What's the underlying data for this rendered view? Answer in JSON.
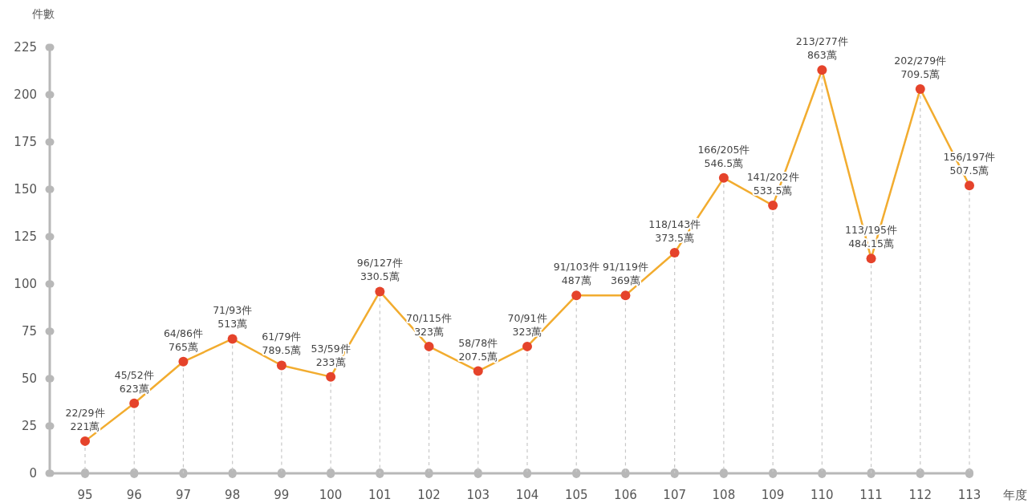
{
  "chart_data": {
    "type": "line",
    "ylabel": "件數",
    "xlabel": "年度",
    "categories": [
      "95",
      "96",
      "97",
      "98",
      "99",
      "100",
      "101",
      "102",
      "103",
      "104",
      "105",
      "106",
      "107",
      "108",
      "109",
      "110",
      "111",
      "112",
      "113"
    ],
    "series": [
      {
        "color": "#f2ac2f",
        "colors": [
          "#e5432b",
          "#e5432b",
          "#e5432b",
          "#e5432b",
          "#e5432b",
          "#e5432b",
          "#e5432b",
          "#e5432b",
          "#e5432b",
          "#e5432b",
          "#e5432b",
          "#e5432b",
          "#e5432b",
          "#e5432b",
          "#e5432b",
          "#e5432b",
          "#e5432b",
          "#e5432b",
          "#e5432b"
        ],
        "values": [
          17,
          37,
          59,
          71,
          57,
          51,
          96,
          67,
          54,
          67,
          94,
          94,
          116.5,
          156,
          141.5,
          213,
          113.5,
          203,
          152
        ],
        "value_labels": [
          "22/29件\n221萬",
          "45/52件\n623萬",
          "64/86件\n765萬",
          "71/93件\n513萬",
          "61/79件\n789.5萬",
          "53/59件\n233萬",
          "96/127件\n330.5萬",
          "70/115件\n323萬",
          "58/78件\n207.5萬",
          "70/91件\n323萬",
          "91/103件\n487萬",
          "91/119件\n369萬",
          "118/143件\n373.5萬",
          "166/205件\n546.5萬",
          "141/202件\n533.5萬",
          "213/277件\n863萬",
          "113/195件\n484.15萬",
          "202/279件\n709.5萬",
          "156/197件\n507.5萬"
        ]
      }
    ],
    "ylim": [
      0,
      225
    ],
    "yticks": [
      0,
      25,
      50,
      75,
      100,
      125,
      150,
      175,
      200,
      225
    ],
    "grid": "x",
    "marker": "circle",
    "line_style": "solid"
  }
}
